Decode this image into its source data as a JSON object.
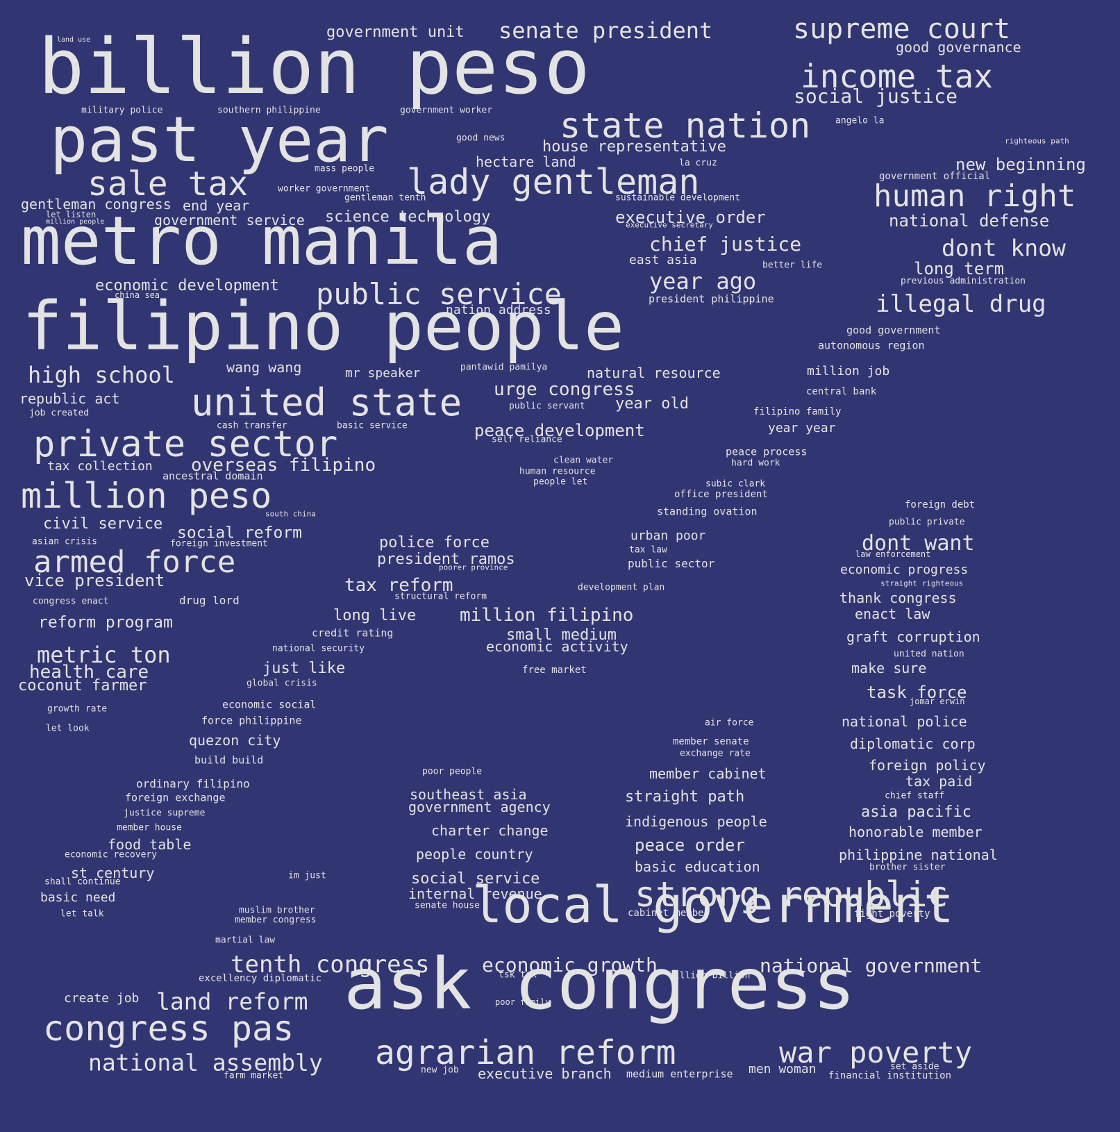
{
  "colors": {
    "background": "#313571",
    "text": "#e3e3e3"
  },
  "words": [
    "billion peso",
    "past year",
    "metro manila",
    "filipino people",
    "ask congress",
    "local government",
    "lady gentleman",
    "united state",
    "private sector",
    "million peso",
    "strong republic",
    "agrarian reform",
    "war poverty",
    "congress pas",
    "supreme court",
    "income tax",
    "state nation",
    "sale tax",
    "human right",
    "public service",
    "armed force",
    "tenth congress",
    "national assembly",
    "land reform",
    "senate president",
    "social justice",
    "house representative",
    "high school",
    "economic growth",
    "national government",
    "chief justice",
    "dont know",
    "year ago",
    "illegal drug",
    "dont want",
    "metric ton",
    "tax reform",
    "million filipino",
    "government unit",
    "good governance",
    "new beginning",
    "national defense",
    "long term",
    "overseas filipino",
    "civil service",
    "social reform",
    "vice president",
    "reform program",
    "health care",
    "urge congress",
    "peace development",
    "year old",
    "executive order",
    "science technology",
    "economic development",
    "gentleman congress",
    "end year",
    "government service",
    "hectare land",
    "nation address",
    "natural resource",
    "mr speaker",
    "republic act",
    "coconut farmer",
    "police force",
    "president ramos",
    "small medium",
    "economic activity",
    "long live",
    "just like",
    "quezon city",
    "thank congress",
    "enact law",
    "graft corruption",
    "make sure",
    "task force",
    "national police",
    "diplomatic corp",
    "foreign policy",
    "tax paid",
    "asia pacific",
    "honorable member",
    "philippine national",
    "straight path",
    "indigenous people",
    "peace order",
    "basic education",
    "member cabinet",
    "southeast asia",
    "government agency",
    "charter change",
    "people country",
    "social service",
    "internal revenue",
    "executive branch",
    "men woman",
    "food table",
    "st century",
    "basic need",
    "create job",
    "economic progress",
    "urban poor",
    "public sector",
    "east asia",
    "year year",
    "million job",
    "good government",
    "autonomous region",
    "central bank",
    "filipino family",
    "peace process",
    "hard work",
    "subic clark",
    "office president",
    "standing ovation",
    "clean water",
    "human resource",
    "people let",
    "drug lord",
    "asian crisis",
    "foreign investment",
    "congress enact",
    "tax collection",
    "ancestral domain",
    "job created",
    "cash transfer",
    "basic service",
    "government official",
    "sustainable development",
    "worker government",
    "gentleman tenth",
    "mass people",
    "la cruz",
    "good news",
    "government worker",
    "southern philippine",
    "military police",
    "angelo la",
    "righteous path",
    "land use",
    "let listen",
    "million people",
    "executive secretary",
    "better life",
    "previous administration",
    "president philippine",
    "china sea",
    "wang wang",
    "pantawid pamilya",
    "public servant",
    "self reliance",
    "south china",
    "foreign debt",
    "public private",
    "law enforcement",
    "straight righteous",
    "united nation",
    "jomar erwin",
    "air force",
    "member senate",
    "exchange rate",
    "chief staff",
    "brother sister",
    "fight poverty",
    "cabinet member",
    "billion billion",
    "tsk tsk",
    "poor family",
    "new job",
    "medium enterprise",
    "set aside",
    "financial institution",
    "farm market",
    "excellency diplomatic",
    "martial law",
    "muslim brother",
    "member congress",
    "senate house",
    "let talk",
    "shall continue",
    "economic recovery",
    "member house",
    "justice supreme",
    "foreign exchange",
    "ordinary filipino",
    "build build",
    "force philippine",
    "economic social",
    "let look",
    "growth rate",
    "global crisis",
    "national security",
    "credit rating",
    "free market",
    "development plan",
    "structural reform",
    "poorer province",
    "tax law",
    "im just",
    "poor people"
  ]
}
